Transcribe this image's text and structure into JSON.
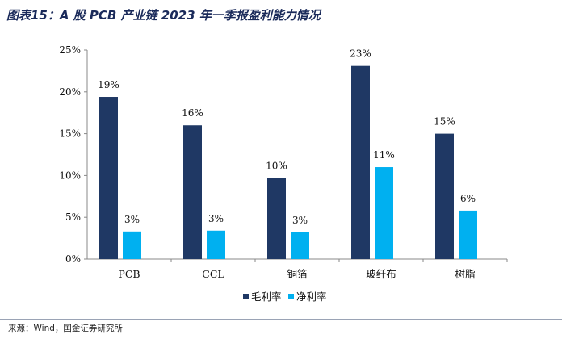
{
  "title": "图表15：A 股 PCB 产业链 2023 年一季报盈利能力情况",
  "source": "来源：Wind，国金证券研究所",
  "colors": {
    "gross": "#1f3864",
    "net": "#00b0f0"
  },
  "chart_data": {
    "type": "bar",
    "categories": [
      "PCB",
      "CCL",
      "铜箔",
      "玻纤布",
      "树脂"
    ],
    "series": [
      {
        "name": "毛利率",
        "values": [
          19.4,
          16.0,
          9.7,
          23.1,
          15.0
        ],
        "labels": [
          "19%",
          "16%",
          "10%",
          "23%",
          "15%"
        ]
      },
      {
        "name": "净利率",
        "values": [
          3.3,
          3.4,
          3.2,
          11.0,
          5.8
        ],
        "labels": [
          "3%",
          "3%",
          "3%",
          "11%",
          "6%"
        ]
      }
    ],
    "ylim": [
      0,
      25
    ],
    "yticks": [
      "0%",
      "5%",
      "10%",
      "15%",
      "20%",
      "25%"
    ],
    "grid": false,
    "legend": "bottom-center"
  }
}
